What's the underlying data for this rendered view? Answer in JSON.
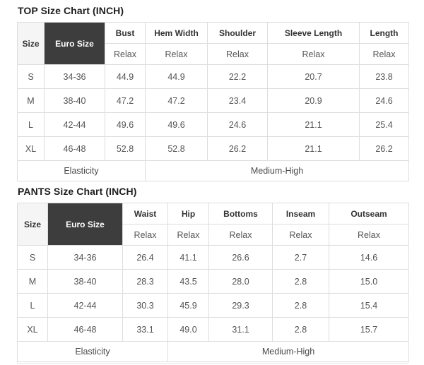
{
  "colors": {
    "dark_header_bg": "#3d3d3d",
    "dark_header_text": "#ffffff",
    "light_header_bg": "#f5f5f5",
    "table_border": "#dddddd",
    "header_text": "#333333",
    "body_text": "#545454",
    "title_text": "#1e1e1e"
  },
  "chart_data": [
    {
      "type": "table",
      "title": "TOP Size Chart (INCH)",
      "corner_headers": [
        "Size",
        "Euro Size"
      ],
      "measure_headers": [
        "Bust",
        "Hem Width",
        "Shoulder",
        "Sleeve Length",
        "Length"
      ],
      "fit_labels": [
        "Relax",
        "Relax",
        "Relax",
        "Relax",
        "Relax"
      ],
      "rows": [
        {
          "size": "S",
          "euro_size": "34-36",
          "values": [
            "44.9",
            "44.9",
            "22.2",
            "20.7",
            "23.8"
          ]
        },
        {
          "size": "M",
          "euro_size": "38-40",
          "values": [
            "47.2",
            "47.2",
            "23.4",
            "20.9",
            "24.6"
          ]
        },
        {
          "size": "L",
          "euro_size": "42-44",
          "values": [
            "49.6",
            "49.6",
            "24.6",
            "21.1",
            "25.4"
          ]
        },
        {
          "size": "XL",
          "euro_size": "46-48",
          "values": [
            "52.8",
            "52.8",
            "26.2",
            "21.1",
            "26.2"
          ]
        }
      ],
      "footer": {
        "label": "Elasticity",
        "value": "Medium-High"
      }
    },
    {
      "type": "table",
      "title": "PANTS Size Chart (INCH)",
      "corner_headers": [
        "Size",
        "Euro Size"
      ],
      "measure_headers": [
        "Waist",
        "Hip",
        "Bottoms",
        "Inseam",
        "Outseam"
      ],
      "fit_labels": [
        "Relax",
        "Relax",
        "Relax",
        "Relax",
        "Relax"
      ],
      "rows": [
        {
          "size": "S",
          "euro_size": "34-36",
          "values": [
            "26.4",
            "41.1",
            "26.6",
            "2.7",
            "14.6"
          ]
        },
        {
          "size": "M",
          "euro_size": "38-40",
          "values": [
            "28.3",
            "43.5",
            "28.0",
            "2.8",
            "15.0"
          ]
        },
        {
          "size": "L",
          "euro_size": "42-44",
          "values": [
            "30.3",
            "45.9",
            "29.3",
            "2.8",
            "15.4"
          ]
        },
        {
          "size": "XL",
          "euro_size": "46-48",
          "values": [
            "33.1",
            "49.0",
            "31.1",
            "2.8",
            "15.7"
          ]
        }
      ],
      "footer": {
        "label": "Elasticity",
        "value": "Medium-High"
      }
    }
  ]
}
